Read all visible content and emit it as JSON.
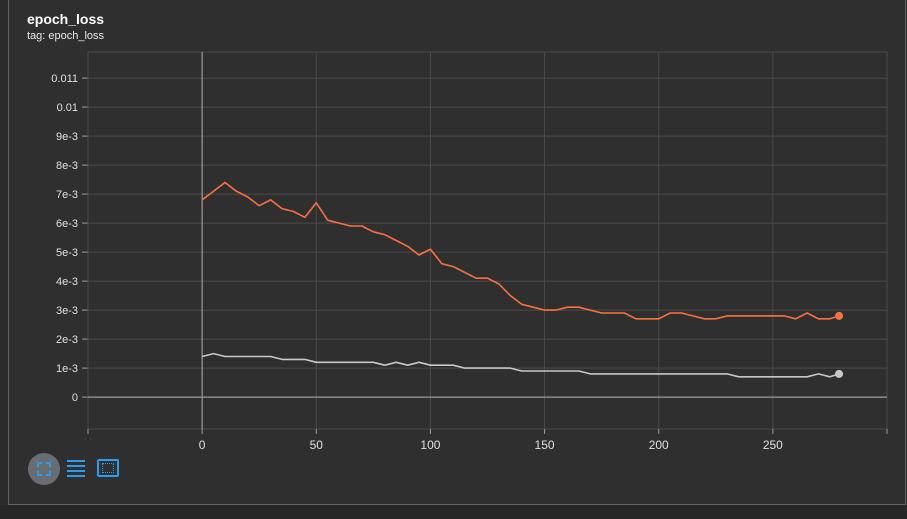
{
  "card": {
    "title": "epoch_loss",
    "tag": "tag: epoch_loss"
  },
  "controls": [
    {
      "name": "fit-domain-icon"
    },
    {
      "name": "toggle-log-scale-icon"
    },
    {
      "name": "expand-chart-icon"
    }
  ],
  "colors": {
    "background": "#2f2f2f",
    "grid": "#4a4a4a",
    "axis": "#9a9a9a",
    "tick_text": "#e0e0e0",
    "accent": "#2f9bf0"
  },
  "chart_data": {
    "type": "line",
    "title": "",
    "xlabel": "",
    "ylabel": "",
    "xlim": [
      -50,
      300
    ],
    "ylim": [
      -0.0011,
      0.0119
    ],
    "x_ticks": [
      0,
      50,
      100,
      150,
      200,
      250
    ],
    "y_ticks": [
      0,
      0.001,
      0.002,
      0.003,
      0.004,
      0.005,
      0.006,
      0.007,
      0.008,
      0.009,
      0.01,
      0.011
    ],
    "y_tick_labels": [
      "0",
      "1e-3",
      "2e-3",
      "3e-3",
      "4e-3",
      "5e-3",
      "6e-3",
      "7e-3",
      "8e-3",
      "9e-3",
      "0.01",
      "0.011"
    ],
    "grid": true,
    "legend": "none",
    "series": [
      {
        "color": "#ff7043",
        "x": [
          0,
          5,
          10,
          15,
          20,
          25,
          30,
          35,
          40,
          45,
          50,
          55,
          60,
          65,
          70,
          75,
          80,
          85,
          90,
          95,
          100,
          105,
          110,
          115,
          120,
          125,
          130,
          135,
          140,
          145,
          150,
          155,
          160,
          165,
          170,
          175,
          180,
          185,
          190,
          195,
          200,
          205,
          210,
          215,
          220,
          225,
          230,
          235,
          240,
          245,
          250,
          255,
          260,
          265,
          270,
          275,
          279
        ],
        "values": [
          0.0068,
          0.0071,
          0.0074,
          0.0071,
          0.0069,
          0.0066,
          0.0068,
          0.0065,
          0.0064,
          0.0062,
          0.0067,
          0.0061,
          0.006,
          0.0059,
          0.0059,
          0.0057,
          0.0056,
          0.0054,
          0.0052,
          0.0049,
          0.0051,
          0.0046,
          0.0045,
          0.0043,
          0.0041,
          0.0041,
          0.0039,
          0.0035,
          0.0032,
          0.0031,
          0.003,
          0.003,
          0.0031,
          0.0031,
          0.003,
          0.0029,
          0.0029,
          0.0029,
          0.0027,
          0.0027,
          0.0027,
          0.0029,
          0.0029,
          0.0028,
          0.0027,
          0.0027,
          0.0028,
          0.0028,
          0.0028,
          0.0028,
          0.0028,
          0.0028,
          0.0027,
          0.0029,
          0.0027,
          0.0027,
          0.0028
        ]
      },
      {
        "color": "#c8c8c8",
        "x": [
          0,
          5,
          10,
          15,
          20,
          25,
          30,
          35,
          40,
          45,
          50,
          55,
          60,
          65,
          70,
          75,
          80,
          85,
          90,
          95,
          100,
          105,
          110,
          115,
          120,
          125,
          130,
          135,
          140,
          145,
          150,
          155,
          160,
          165,
          170,
          175,
          180,
          185,
          190,
          195,
          200,
          205,
          210,
          215,
          220,
          225,
          230,
          235,
          240,
          245,
          250,
          255,
          260,
          265,
          270,
          275,
          279
        ],
        "values": [
          0.0014,
          0.0015,
          0.0014,
          0.0014,
          0.0014,
          0.0014,
          0.0014,
          0.0013,
          0.0013,
          0.0013,
          0.0012,
          0.0012,
          0.0012,
          0.0012,
          0.0012,
          0.0012,
          0.0011,
          0.0012,
          0.0011,
          0.0012,
          0.0011,
          0.0011,
          0.0011,
          0.001,
          0.001,
          0.001,
          0.001,
          0.001,
          0.0009,
          0.0009,
          0.0009,
          0.0009,
          0.0009,
          0.0009,
          0.0008,
          0.0008,
          0.0008,
          0.0008,
          0.0008,
          0.0008,
          0.0008,
          0.0008,
          0.0008,
          0.0008,
          0.0008,
          0.0008,
          0.0008,
          0.0007,
          0.0007,
          0.0007,
          0.0007,
          0.0007,
          0.0007,
          0.0007,
          0.0008,
          0.0007,
          0.0008
        ]
      }
    ]
  }
}
